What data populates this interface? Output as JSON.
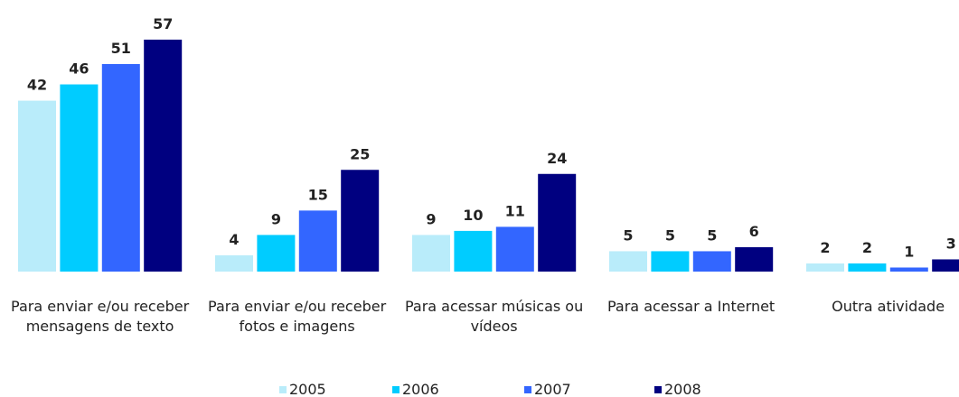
{
  "chart_data": {
    "type": "bar",
    "categories": [
      "Para enviar e/ou receber mensagens de texto",
      "Para enviar e/ou receber fotos e imagens",
      "Para acessar músicas ou vídeos",
      "Para acessar a Internet",
      "Outra atividade"
    ],
    "series": [
      {
        "name": "2005",
        "color": "#b9ecfa",
        "values": [
          42,
          4,
          9,
          5,
          2
        ]
      },
      {
        "name": "2006",
        "color": "#00ccff",
        "values": [
          46,
          9,
          10,
          5,
          2
        ]
      },
      {
        "name": "2007",
        "color": "#3366ff",
        "values": [
          51,
          15,
          11,
          5,
          1
        ]
      },
      {
        "name": "2008",
        "color": "#000080",
        "values": [
          57,
          25,
          24,
          6,
          3
        ]
      }
    ]
  }
}
